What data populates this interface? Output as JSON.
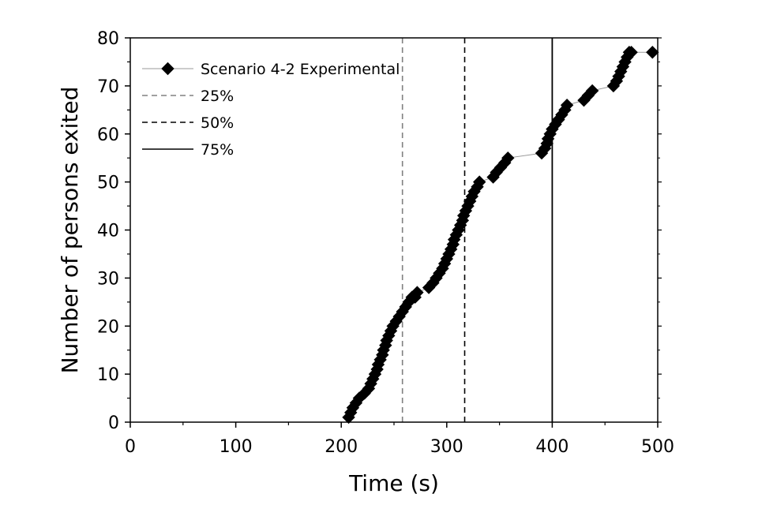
{
  "chart_data": {
    "type": "scatter",
    "title": "",
    "xlabel": "Time (s)",
    "ylabel": "Number of persons exited",
    "xlim": [
      0,
      500
    ],
    "ylim": [
      0,
      80
    ],
    "xticks": [
      0,
      100,
      200,
      300,
      400,
      500
    ],
    "yticks": [
      0,
      10,
      20,
      30,
      40,
      50,
      60,
      70,
      80
    ],
    "legend_position": "top-left",
    "series": [
      {
        "name": "Scenario 4-2 Experimental",
        "style": "line-diamond",
        "color": "#000000",
        "line_color": "#999999",
        "x": [
          207,
          209,
          211,
          214,
          217,
          222,
          226,
          228,
          230,
          232,
          234,
          235,
          237,
          239,
          240,
          242,
          243,
          245,
          247,
          249,
          252,
          255,
          258,
          261,
          264,
          267,
          270,
          272,
          283,
          287,
          290,
          293,
          296,
          298,
          300,
          302,
          304,
          306,
          307,
          309,
          311,
          313,
          315,
          316,
          318,
          320,
          322,
          324,
          326,
          329,
          331,
          344,
          347,
          351,
          355,
          358,
          390,
          393,
          395,
          396,
          398,
          400,
          403,
          406,
          409,
          412,
          414,
          430,
          434,
          438,
          458,
          461,
          463,
          465,
          467,
          469,
          471,
          473,
          475,
          495
        ],
        "y": [
          1,
          2,
          3,
          4,
          5,
          6,
          7,
          8,
          9,
          10,
          11,
          12,
          13,
          14,
          15,
          16,
          17,
          18,
          19,
          20,
          21,
          22,
          23,
          24,
          25,
          26,
          26,
          27,
          28,
          29,
          30,
          31,
          32,
          33,
          34,
          35,
          36,
          37,
          38,
          39,
          40,
          41,
          42,
          43,
          44,
          45,
          46,
          47,
          48,
          49,
          50,
          51,
          52,
          53,
          54,
          55,
          56,
          57,
          58,
          59,
          60,
          61,
          62,
          63,
          64,
          65,
          66,
          67,
          68,
          69,
          70,
          71,
          72,
          73,
          74,
          75,
          76,
          77,
          77,
          77
        ]
      },
      {
        "name": "25%",
        "style": "dashed",
        "color": "#808080",
        "x": [
          258,
          258
        ],
        "y": [
          0,
          80
        ]
      },
      {
        "name": "50%",
        "style": "dashed",
        "color": "#000000",
        "x": [
          317,
          317
        ],
        "y": [
          0,
          80
        ]
      },
      {
        "name": "75%",
        "style": "solid",
        "color": "#000000",
        "x": [
          400,
          400
        ],
        "y": [
          0,
          80
        ]
      }
    ]
  }
}
